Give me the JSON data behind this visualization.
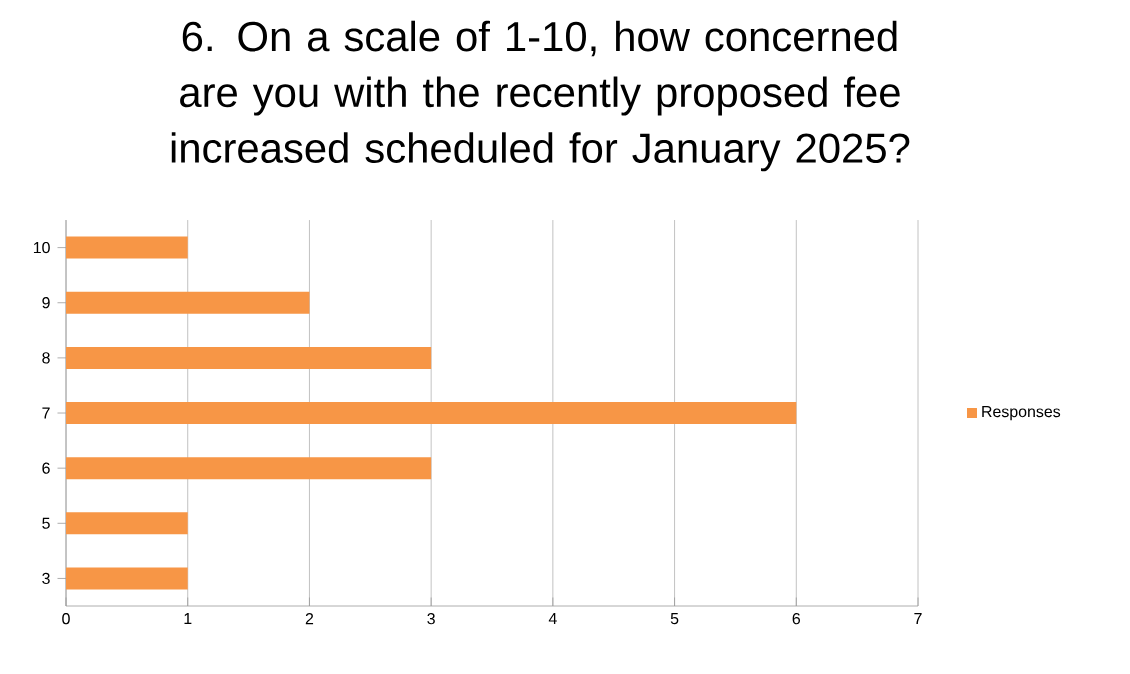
{
  "chart_data": {
    "type": "bar",
    "orientation": "horizontal",
    "title": "6. On a scale of 1-10, how concerned are you with the recently proposed fee increased scheduled for January 2025?",
    "categories": [
      "10",
      "9",
      "8",
      "7",
      "6",
      "5",
      "3"
    ],
    "series": [
      {
        "name": "Responses",
        "color": "#f79646",
        "values": [
          1,
          2,
          3,
          6,
          3,
          1,
          1
        ]
      }
    ],
    "xlim": [
      0,
      7
    ],
    "xticks": [
      0,
      1,
      2,
      3,
      4,
      5,
      6,
      7
    ],
    "grid": "x",
    "legend": "right"
  }
}
